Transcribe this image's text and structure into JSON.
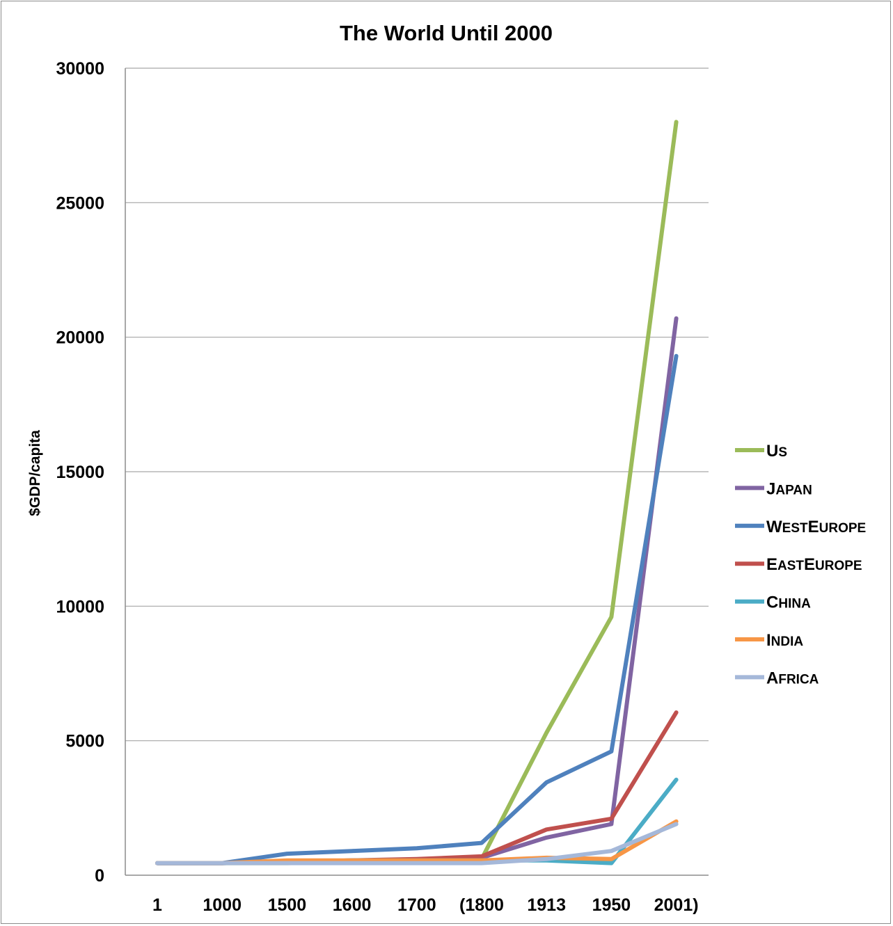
{
  "chart_data": {
    "type": "line",
    "title": "The World Until 2000",
    "xlabel": "",
    "ylabel": "$GDP/capita",
    "categories": [
      "1",
      "1000",
      "1500",
      "1600",
      "1700",
      "(1800",
      "1913",
      "1950",
      "2001)"
    ],
    "ylim": [
      0,
      30000
    ],
    "yticks": [
      0,
      5000,
      10000,
      15000,
      20000,
      25000,
      30000
    ],
    "grid": true,
    "legend_position": "right",
    "series": [
      {
        "name": "US",
        "legend": [
          "U",
          "S"
        ],
        "color": "#9bbb59",
        "values": [
          450,
          450,
          450,
          500,
          550,
          600,
          5300,
          9600,
          28000
        ]
      },
      {
        "name": "Japan",
        "legend": [
          "J",
          "APAN"
        ],
        "color": "#8064a2",
        "values": [
          450,
          450,
          500,
          550,
          550,
          650,
          1400,
          1900,
          20700
        ]
      },
      {
        "name": "WestEurope",
        "legend": [
          "W",
          "EST",
          "E",
          "UROPE"
        ],
        "color": "#4f81bd",
        "values": [
          450,
          450,
          800,
          900,
          1000,
          1200,
          3450,
          4600,
          19300
        ]
      },
      {
        "name": "EastEurope",
        "legend": [
          "E",
          "AST",
          "E",
          "UROPE"
        ],
        "color": "#c0504d",
        "values": [
          450,
          450,
          500,
          550,
          600,
          700,
          1700,
          2100,
          6050
        ]
      },
      {
        "name": "China",
        "legend": [
          "C",
          "HINA"
        ],
        "color": "#4bacc6",
        "values": [
          450,
          450,
          500,
          550,
          550,
          550,
          550,
          450,
          3550
        ]
      },
      {
        "name": "India",
        "legend": [
          "I",
          "NDIA"
        ],
        "color": "#f79646",
        "values": [
          450,
          450,
          550,
          550,
          550,
          550,
          650,
          600,
          2000
        ]
      },
      {
        "name": "Africa",
        "legend": [
          "A",
          "FRICA"
        ],
        "color": "#a5b8d9",
        "values": [
          450,
          450,
          450,
          450,
          450,
          450,
          600,
          900,
          1900
        ]
      }
    ]
  }
}
